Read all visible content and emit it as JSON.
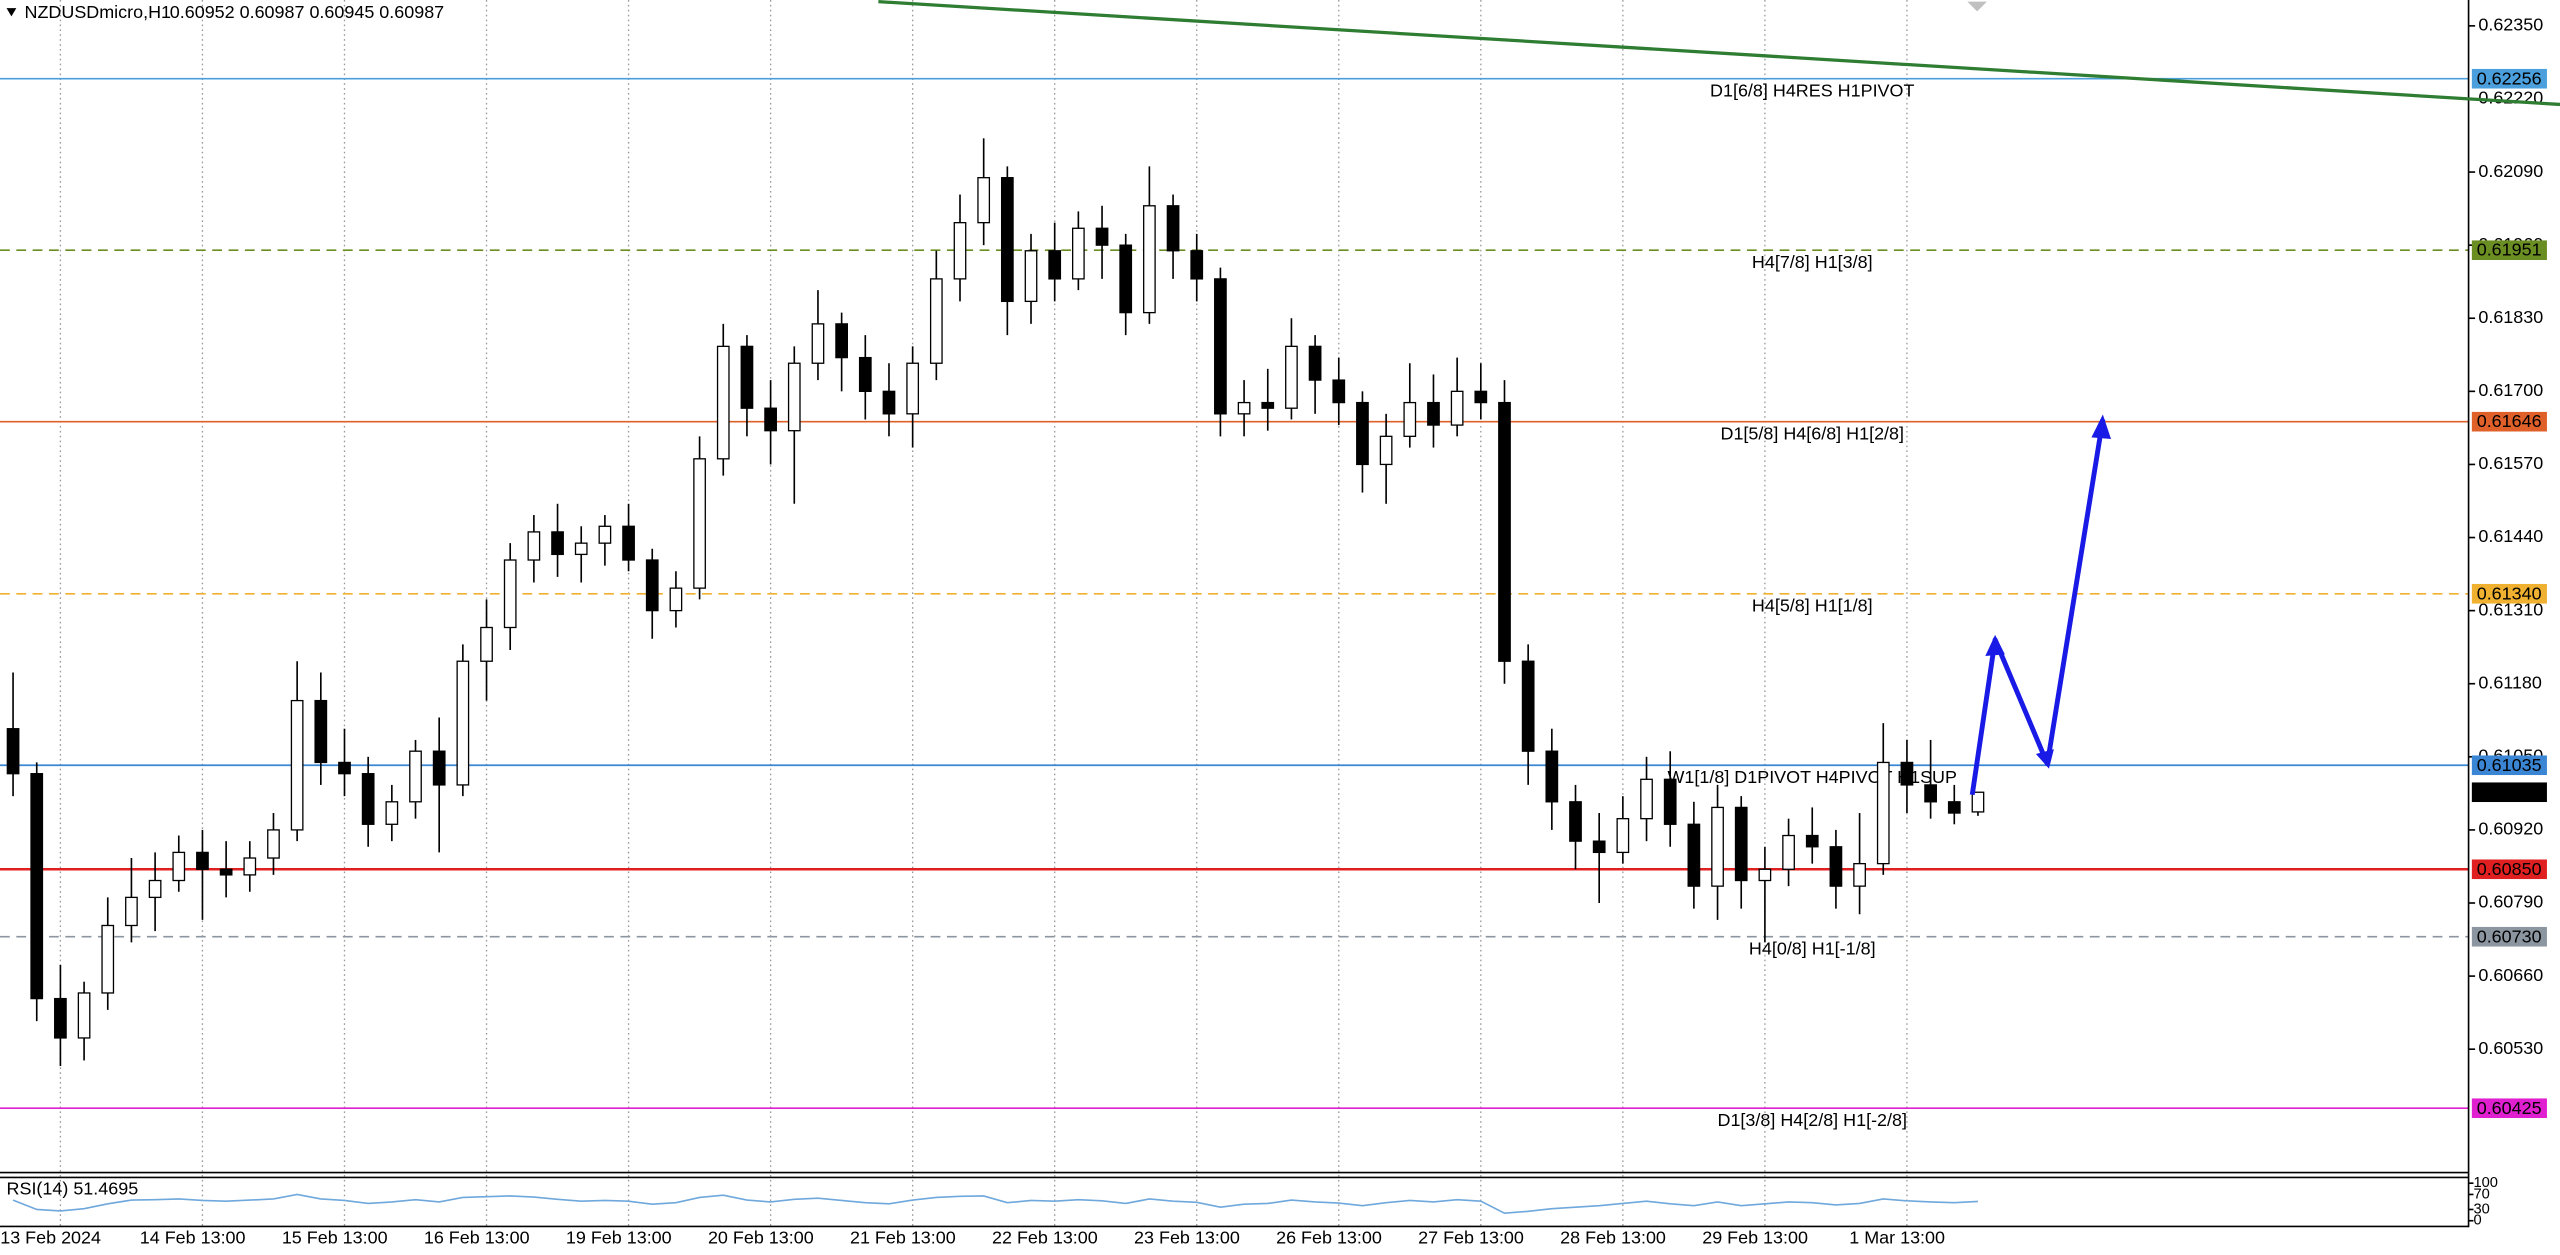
{
  "chart_data": {
    "type": "candlestick",
    "symbol": "NZDUSDmicro,H1",
    "ohlc_text": "0.60952 0.60987 0.60945 0.60987",
    "up_color": "#ffffff",
    "down_color": "#000000",
    "categories": [
      null,
      null,
      "13 Feb 2024",
      null,
      null,
      null,
      null,
      null,
      "14 Feb 13:00",
      null,
      null,
      null,
      null,
      null,
      "15 Feb 13:00",
      null,
      null,
      null,
      null,
      null,
      "16 Feb 13:00",
      null,
      null,
      null,
      null,
      null,
      "19 Feb 13:00",
      null,
      null,
      null,
      null,
      null,
      "20 Feb 13:00",
      null,
      null,
      null,
      null,
      null,
      "21 Feb 13:00",
      null,
      null,
      null,
      null,
      null,
      "22 Feb 13:00",
      null,
      null,
      null,
      null,
      null,
      "23 Feb 13:00",
      null,
      null,
      null,
      null,
      null,
      "26 Feb 13:00",
      null,
      null,
      null,
      null,
      null,
      "27 Feb 13:00",
      null,
      null,
      null,
      null,
      null,
      "28 Feb 13:00",
      null,
      null,
      null,
      null,
      null,
      "29 Feb 13:00",
      null,
      null,
      null,
      null,
      null,
      "1 Mar 13:00",
      null,
      null,
      null
    ],
    "open": [
      0.611,
      0.6102,
      0.6062,
      0.6055,
      0.6063,
      0.6075,
      0.608,
      0.6083,
      0.6088,
      0.6085,
      0.6084,
      0.6087,
      0.6092,
      0.6115,
      0.6104,
      0.6102,
      0.6093,
      0.6097,
      0.6106,
      0.61,
      0.6122,
      0.6128,
      0.614,
      0.6145,
      0.6141,
      0.6143,
      0.6146,
      0.614,
      0.6131,
      0.6135,
      0.6158,
      0.6178,
      0.6167,
      0.6163,
      0.6175,
      0.6182,
      0.6176,
      0.617,
      0.6166,
      0.6175,
      0.619,
      0.62,
      0.6208,
      0.6186,
      0.6195,
      0.619,
      0.6199,
      0.6196,
      0.6184,
      0.6203,
      0.6195,
      0.619,
      0.6166,
      0.6168,
      0.6167,
      0.6178,
      0.6172,
      0.6168,
      0.6157,
      0.6162,
      0.6168,
      0.6164,
      0.617,
      0.6168,
      0.6122,
      0.6106,
      0.6097,
      0.609,
      0.6088,
      0.6094,
      0.6101,
      0.6093,
      0.6082,
      0.6096,
      0.6083,
      0.6085,
      0.6091,
      0.6089,
      0.6082,
      0.6086,
      0.6104,
      0.61,
      0.6097,
      0.60952
    ],
    "high": [
      0.612,
      0.6104,
      0.6068,
      0.6065,
      0.608,
      0.6087,
      0.6088,
      0.6091,
      0.6092,
      0.609,
      0.609,
      0.6095,
      0.6122,
      0.612,
      0.611,
      0.6105,
      0.61,
      0.6108,
      0.6112,
      0.6125,
      0.6133,
      0.6143,
      0.6148,
      0.615,
      0.6146,
      0.6148,
      0.615,
      0.6142,
      0.6138,
      0.6162,
      0.6182,
      0.618,
      0.6172,
      0.6178,
      0.6188,
      0.6184,
      0.618,
      0.6175,
      0.6178,
      0.6195,
      0.6205,
      0.6215,
      0.621,
      0.6198,
      0.62,
      0.6202,
      0.6203,
      0.6198,
      0.621,
      0.6205,
      0.6198,
      0.6192,
      0.6172,
      0.6174,
      0.6183,
      0.618,
      0.6176,
      0.617,
      0.6166,
      0.6175,
      0.6173,
      0.6176,
      0.6175,
      0.6172,
      0.6125,
      0.611,
      0.61,
      0.6095,
      0.6098,
      0.6105,
      0.6106,
      0.6097,
      0.61,
      0.6098,
      0.6089,
      0.6094,
      0.6096,
      0.6092,
      0.6095,
      0.6111,
      0.6108,
      0.6108,
      0.61,
      0.60987
    ],
    "low": [
      0.6098,
      0.6058,
      0.605,
      0.6051,
      0.606,
      0.6072,
      0.6074,
      0.6081,
      0.6076,
      0.608,
      0.6081,
      0.6084,
      0.609,
      0.61,
      0.6098,
      0.6089,
      0.609,
      0.6094,
      0.6088,
      0.6098,
      0.6115,
      0.6124,
      0.6136,
      0.6137,
      0.6136,
      0.6139,
      0.6138,
      0.6126,
      0.6128,
      0.6133,
      0.6155,
      0.6162,
      0.6157,
      0.615,
      0.6172,
      0.617,
      0.6165,
      0.6162,
      0.616,
      0.6172,
      0.6186,
      0.6196,
      0.618,
      0.6182,
      0.6186,
      0.6188,
      0.619,
      0.618,
      0.6182,
      0.619,
      0.6186,
      0.6162,
      0.6162,
      0.6163,
      0.6165,
      0.6166,
      0.6164,
      0.6152,
      0.615,
      0.616,
      0.616,
      0.6162,
      0.6165,
      0.6118,
      0.61,
      0.6092,
      0.6085,
      0.6079,
      0.6086,
      0.609,
      0.6089,
      0.6078,
      0.6076,
      0.6078,
      0.6072,
      0.6082,
      0.6086,
      0.6078,
      0.6077,
      0.6084,
      0.6095,
      0.6094,
      0.6093,
      0.60945
    ],
    "close": [
      0.6102,
      0.6062,
      0.6055,
      0.6063,
      0.6075,
      0.608,
      0.6083,
      0.6088,
      0.6085,
      0.6084,
      0.6087,
      0.6092,
      0.6115,
      0.6104,
      0.6102,
      0.6093,
      0.6097,
      0.6106,
      0.61,
      0.6122,
      0.6128,
      0.614,
      0.6145,
      0.6141,
      0.6143,
      0.6146,
      0.614,
      0.6131,
      0.6135,
      0.6158,
      0.6178,
      0.6167,
      0.6163,
      0.6175,
      0.6182,
      0.6176,
      0.617,
      0.6166,
      0.6175,
      0.619,
      0.62,
      0.6208,
      0.6186,
      0.6195,
      0.619,
      0.6199,
      0.6196,
      0.6184,
      0.6203,
      0.6195,
      0.619,
      0.6166,
      0.6168,
      0.6167,
      0.6178,
      0.6172,
      0.6168,
      0.6157,
      0.6162,
      0.6168,
      0.6164,
      0.617,
      0.6168,
      0.6122,
      0.6106,
      0.6097,
      0.609,
      0.6088,
      0.6094,
      0.6101,
      0.6093,
      0.6082,
      0.6096,
      0.6083,
      0.6085,
      0.6091,
      0.6089,
      0.6082,
      0.6086,
      0.6104,
      0.61,
      0.6097,
      0.6095,
      0.60987
    ],
    "ylim": [
      0.60312,
      0.62396
    ],
    "yticks": [
      {
        "value": 0.6235,
        "label": "0.62350"
      },
      {
        "value": 0.6222,
        "label": "0.62220"
      },
      {
        "value": 0.6209,
        "label": "0.62090"
      },
      {
        "value": 0.6196,
        "label": "0.61960"
      },
      {
        "value": 0.6183,
        "label": "0.61830"
      },
      {
        "value": 0.617,
        "label": "0.61700"
      },
      {
        "value": 0.6157,
        "label": "0.61570"
      },
      {
        "value": 0.6144,
        "label": "0.61440"
      },
      {
        "value": 0.6131,
        "label": "0.61310"
      },
      {
        "value": 0.6118,
        "label": "0.61180"
      },
      {
        "value": 0.6105,
        "label": "0.61050"
      },
      {
        "value": 0.6092,
        "label": "0.60920"
      },
      {
        "value": 0.6079,
        "label": "0.60790"
      },
      {
        "value": 0.6066,
        "label": "0.60660"
      },
      {
        "value": 0.6053,
        "label": "0.60530"
      }
    ],
    "levels": [
      {
        "price": 0.62256,
        "text": "D1[6/8] H4RES H1PIVOT",
        "color": "#4a9fdc",
        "dashed": false
      },
      {
        "price": 0.61951,
        "text": "H4[7/8] H1[3/8]",
        "color": "#6b8e23",
        "dashed": true
      },
      {
        "price": 0.61646,
        "text": "D1[5/8] H4[6/8] H1[2/8]",
        "color": "#e0602a",
        "dashed": false
      },
      {
        "price": {
          "value": 0.6134,
          "label": "0.61340"
        },
        "text": "H4[5/8] H1[1/8]",
        "color": "#f0b030",
        "dashed": true
      },
      {
        "price": 0.61035,
        "text": "W1[1/8] D1PIVOT H4PIVOT H1SUP",
        "color": "#3a86d4",
        "dashed": false
      },
      {
        "price": {
          "value": 0.6085,
          "label": "0.60850"
        },
        "color": "#e02020",
        "dashed": false
      },
      {
        "price": {
          "value": 0.6073,
          "label": "0.60730"
        },
        "text": "H4[0/8] H1[-1/8]",
        "color": "#8c96a0",
        "dashed": true
      },
      {
        "price": 0.60425,
        "text": "D1[3/8] H4[2/8] H1[-2/8]",
        "color": "#e020d0",
        "dashed": false
      }
    ],
    "last_price": 0.60987,
    "rsi": {
      "label": "RSI(14) 51.4695",
      "color": "#6fa8dc",
      "ylim": [
        0,
        100
      ],
      "yticks": [
        100,
        70,
        30,
        0
      ],
      "values": [
        55,
        30,
        26,
        32,
        45,
        55,
        56,
        58,
        54,
        52,
        55,
        58,
        70,
        58,
        54,
        46,
        50,
        56,
        50,
        62,
        64,
        66,
        63,
        57,
        52,
        54,
        52,
        44,
        48,
        62,
        68,
        55,
        50,
        57,
        60,
        54,
        48,
        45,
        55,
        62,
        65,
        66,
        48,
        54,
        52,
        56,
        53,
        46,
        58,
        52,
        49,
        36,
        44,
        46,
        55,
        50,
        47,
        40,
        48,
        54,
        50,
        56,
        52,
        20,
        25,
        32,
        36,
        40,
        46,
        52,
        45,
        40,
        50,
        40,
        45,
        50,
        48,
        42,
        46,
        58,
        53,
        50,
        48,
        51.4695
      ]
    }
  }
}
